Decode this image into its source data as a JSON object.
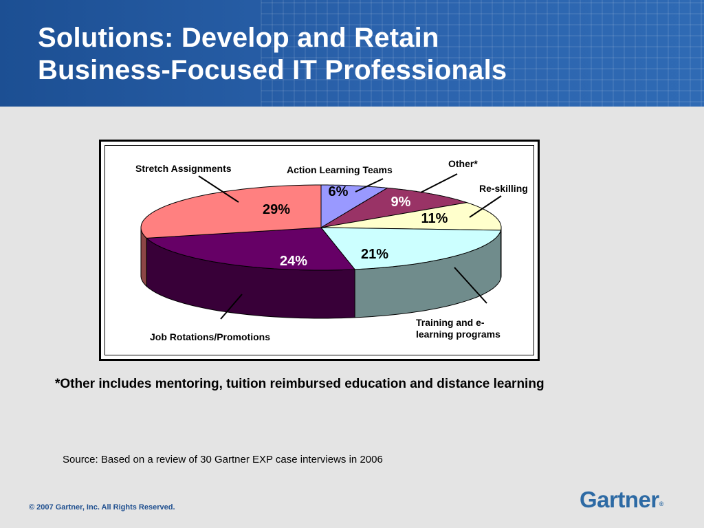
{
  "header": {
    "title_line1": "Solutions: Develop and Retain",
    "title_line2": "Business-Focused IT Professionals"
  },
  "chart_data": {
    "type": "pie",
    "categories": [
      "Action Learning Teams",
      "Other*",
      "Re-skilling",
      "Training and e-learning programs",
      "Job Rotations/Promotions",
      "Stretch Assignments"
    ],
    "values": [
      6,
      9,
      11,
      21,
      24,
      29
    ],
    "value_labels": [
      "6%",
      "9%",
      "11%",
      "21%",
      "24%",
      "29%"
    ],
    "colors": [
      "#9999ff",
      "#993366",
      "#ffffcc",
      "#ccffff",
      "#660066",
      "#ff8080"
    ],
    "label_lines": [
      [
        "Action Learning Teams"
      ],
      [
        "Other*"
      ],
      [
        "Re-skilling"
      ],
      [
        "Training and e-",
        "learning programs"
      ],
      [
        "Job Rotations/Promotions"
      ],
      [
        "Stretch Assignments"
      ]
    ],
    "style": "3d"
  },
  "footnote": "*Other includes mentoring, tuition reimbursed education and distance learning",
  "source": "Source: Based on a review of 30 Gartner EXP case interviews in 2006",
  "copyright": "© 2007 Gartner, Inc. All Rights Reserved.",
  "logo": {
    "text": "Gartner",
    "mark": "®"
  }
}
